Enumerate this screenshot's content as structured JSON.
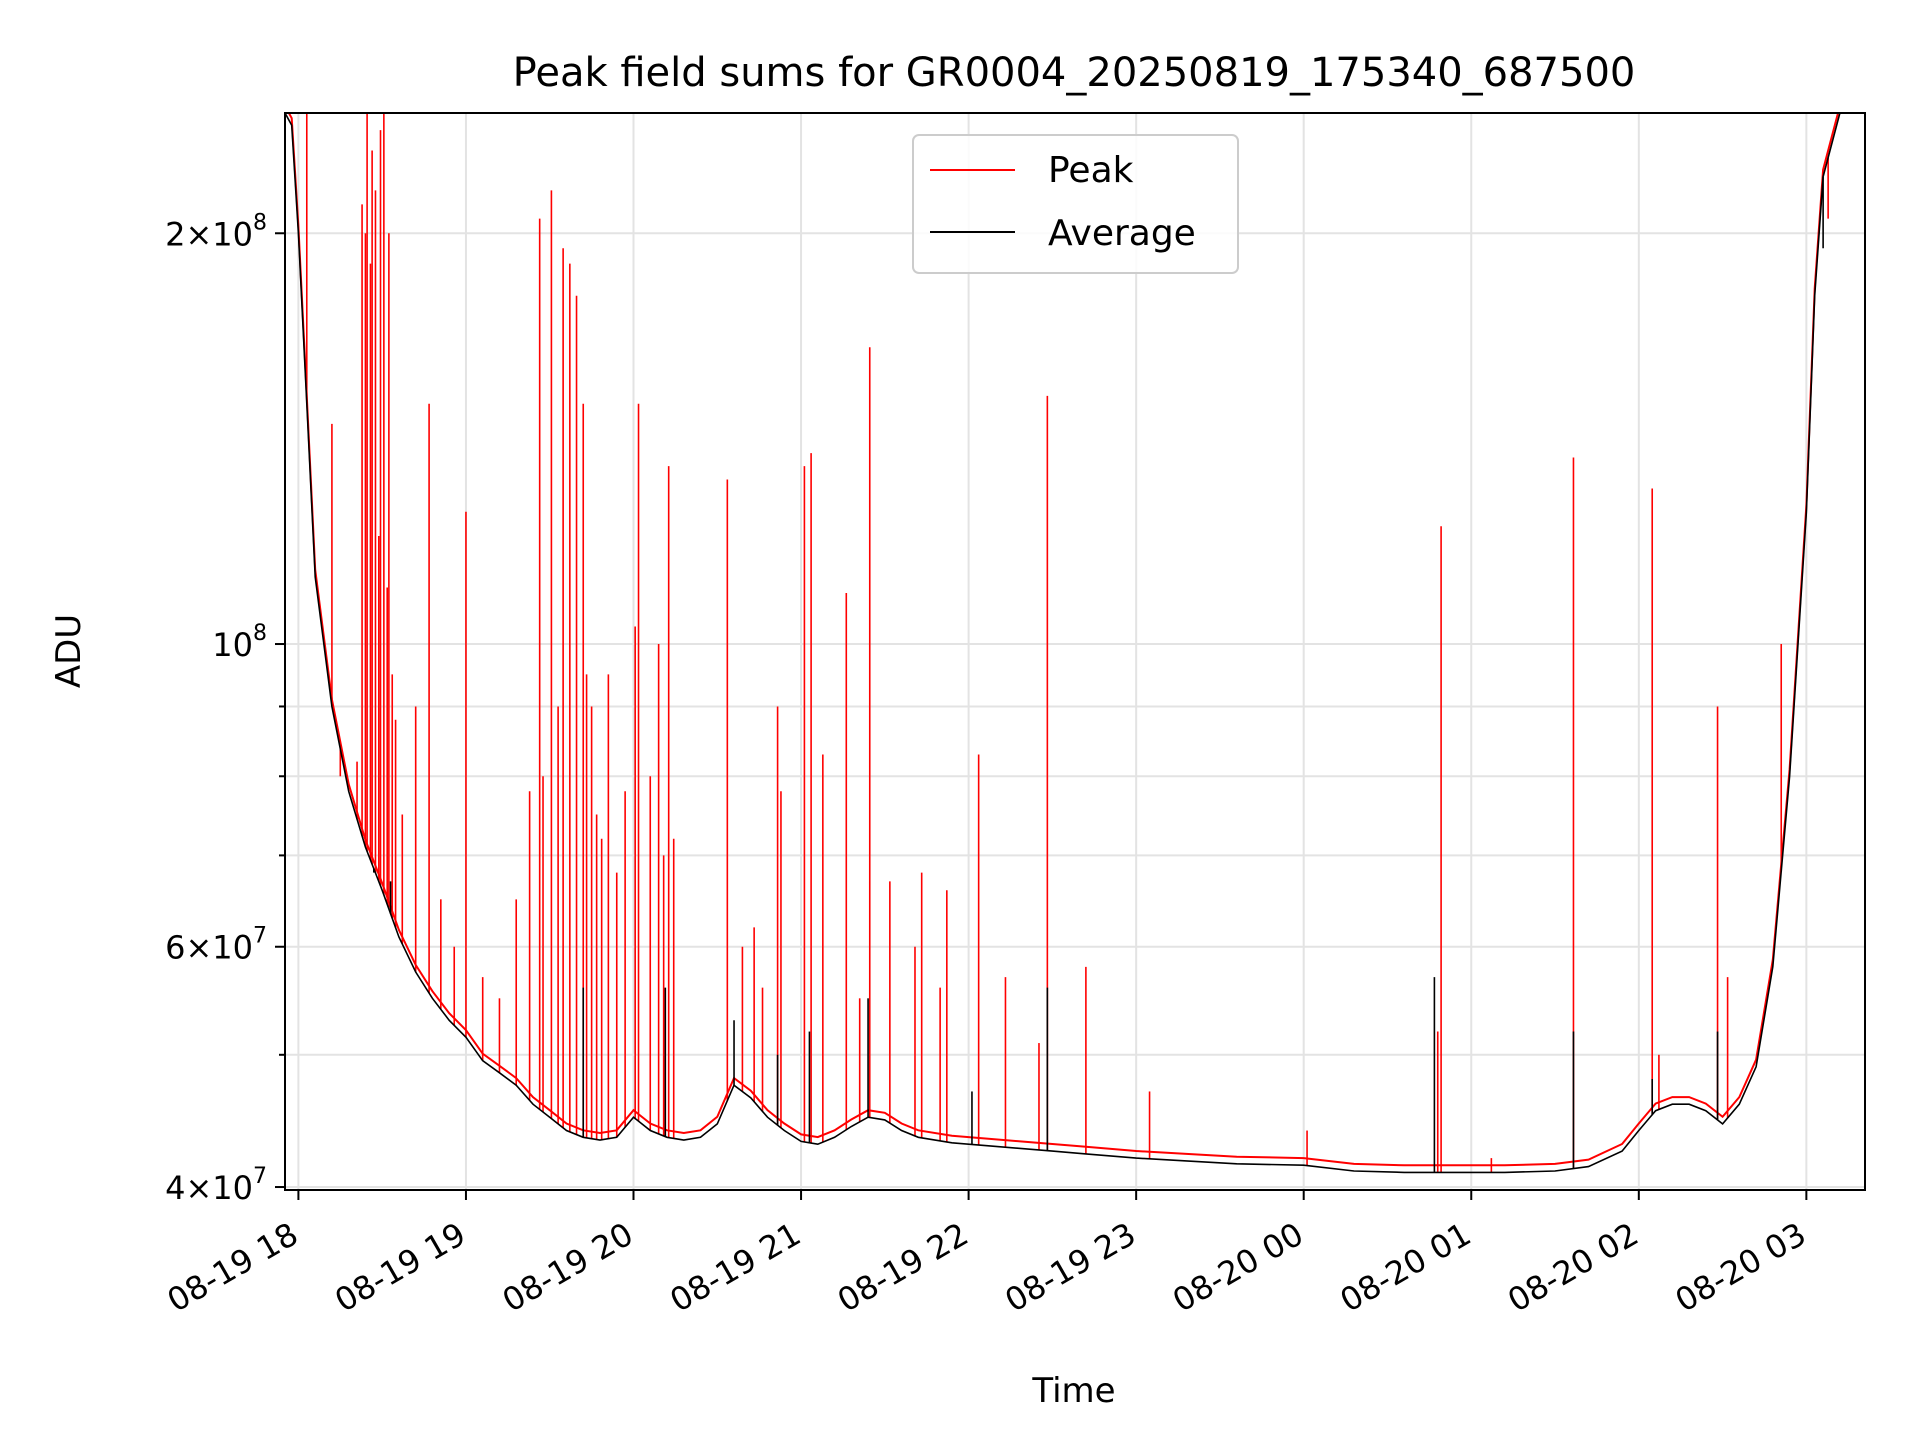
{
  "chart_data": {
    "type": "line",
    "title": "Peak field sums for GR0004_20250819_175340_687500",
    "xlabel": "Time",
    "ylabel": "ADU",
    "yscale": "log",
    "xlim_hours": [
      17.92,
      27.35
    ],
    "ylim": [
      39800000,
      245000000
    ],
    "grid": true,
    "legend_position": "top-center",
    "x_ticks": [
      {
        "hour": 18,
        "label": "08-19 18"
      },
      {
        "hour": 19,
        "label": "08-19 19"
      },
      {
        "hour": 20,
        "label": "08-19 20"
      },
      {
        "hour": 21,
        "label": "08-19 21"
      },
      {
        "hour": 22,
        "label": "08-19 22"
      },
      {
        "hour": 23,
        "label": "08-19 23"
      },
      {
        "hour": 24,
        "label": "08-20 00"
      },
      {
        "hour": 25,
        "label": "08-20 01"
      },
      {
        "hour": 26,
        "label": "08-20 02"
      },
      {
        "hour": 27,
        "label": "08-20 03"
      }
    ],
    "y_ticks_major": [
      {
        "value": 40000000,
        "mantissa": "4",
        "exp": "7"
      },
      {
        "value": 60000000,
        "mantissa": "6",
        "exp": "7"
      },
      {
        "value": 100000000,
        "mantissa": "",
        "exp": "8"
      },
      {
        "value": 200000000,
        "mantissa": "2",
        "exp": "8"
      }
    ],
    "y_ticks_minor": [
      50000000,
      70000000,
      80000000,
      90000000
    ],
    "series": [
      {
        "name": "Average",
        "color": "#000000",
        "points": [
          [
            17.92,
            245000000
          ],
          [
            17.96,
            240000000
          ],
          [
            18.0,
            200000000
          ],
          [
            18.05,
            150000000
          ],
          [
            18.1,
            112000000
          ],
          [
            18.2,
            90000000
          ],
          [
            18.3,
            78000000
          ],
          [
            18.4,
            71000000
          ],
          [
            18.5,
            66000000
          ],
          [
            18.6,
            61000000
          ],
          [
            18.7,
            57500000
          ],
          [
            18.8,
            55000000
          ],
          [
            18.9,
            53000000
          ],
          [
            19.0,
            51500000
          ],
          [
            19.1,
            49500000
          ],
          [
            19.2,
            48500000
          ],
          [
            19.3,
            47500000
          ],
          [
            19.4,
            46000000
          ],
          [
            19.5,
            45000000
          ],
          [
            19.6,
            44000000
          ],
          [
            19.7,
            43500000
          ],
          [
            19.8,
            43300000
          ],
          [
            19.9,
            43500000
          ],
          [
            20.0,
            45000000
          ],
          [
            20.1,
            44000000
          ],
          [
            20.2,
            43500000
          ],
          [
            20.3,
            43300000
          ],
          [
            20.4,
            43500000
          ],
          [
            20.5,
            44500000
          ],
          [
            20.6,
            47500000
          ],
          [
            20.7,
            46500000
          ],
          [
            20.8,
            45000000
          ],
          [
            20.9,
            44000000
          ],
          [
            21.0,
            43200000
          ],
          [
            21.1,
            43000000
          ],
          [
            21.2,
            43500000
          ],
          [
            21.3,
            44300000
          ],
          [
            21.4,
            45000000
          ],
          [
            21.5,
            44800000
          ],
          [
            21.6,
            44000000
          ],
          [
            21.7,
            43500000
          ],
          [
            21.9,
            43100000
          ],
          [
            22.1,
            42900000
          ],
          [
            22.3,
            42700000
          ],
          [
            22.5,
            42500000
          ],
          [
            22.7,
            42300000
          ],
          [
            23.0,
            42000000
          ],
          [
            23.3,
            41800000
          ],
          [
            23.6,
            41600000
          ],
          [
            24.0,
            41500000
          ],
          [
            24.3,
            41100000
          ],
          [
            24.6,
            41000000
          ],
          [
            24.9,
            41000000
          ],
          [
            25.2,
            41000000
          ],
          [
            25.5,
            41100000
          ],
          [
            25.7,
            41400000
          ],
          [
            25.9,
            42500000
          ],
          [
            26.0,
            44000000
          ],
          [
            26.1,
            45500000
          ],
          [
            26.2,
            46000000
          ],
          [
            26.3,
            46000000
          ],
          [
            26.4,
            45500000
          ],
          [
            26.5,
            44500000
          ],
          [
            26.6,
            46000000
          ],
          [
            26.7,
            49000000
          ],
          [
            26.8,
            58000000
          ],
          [
            26.9,
            80000000
          ],
          [
            27.0,
            125000000
          ],
          [
            27.05,
            180000000
          ],
          [
            27.1,
            220000000
          ],
          [
            27.2,
            245000000
          ],
          [
            27.35,
            245000000
          ]
        ],
        "spikes": [
          [
            18.3,
            78000000
          ],
          [
            18.45,
            68000000
          ],
          [
            18.55,
            67000000
          ],
          [
            19.7,
            56000000
          ],
          [
            20.19,
            56000000
          ],
          [
            20.6,
            53000000
          ],
          [
            20.86,
            50000000
          ],
          [
            21.05,
            52000000
          ],
          [
            21.4,
            55000000
          ],
          [
            22.02,
            47000000
          ],
          [
            22.47,
            56000000
          ],
          [
            24.78,
            57000000
          ],
          [
            25.61,
            52000000
          ],
          [
            26.08,
            48000000
          ],
          [
            26.47,
            52000000
          ],
          [
            27.1,
            195000000
          ]
        ]
      },
      {
        "name": "Peak",
        "color": "#ff0000",
        "spikes": [
          [
            18.05,
            245000000
          ],
          [
            18.2,
            145000000
          ],
          [
            18.25,
            80000000
          ],
          [
            18.35,
            82000000
          ],
          [
            18.38,
            210000000
          ],
          [
            18.4,
            200000000
          ],
          [
            18.41,
            245000000
          ],
          [
            18.43,
            190000000
          ],
          [
            18.44,
            230000000
          ],
          [
            18.46,
            215000000
          ],
          [
            18.48,
            120000000
          ],
          [
            18.49,
            238000000
          ],
          [
            18.51,
            245000000
          ],
          [
            18.53,
            110000000
          ],
          [
            18.54,
            200000000
          ],
          [
            18.56,
            95000000
          ],
          [
            18.58,
            88000000
          ],
          [
            18.62,
            75000000
          ],
          [
            18.7,
            90000000
          ],
          [
            18.78,
            150000000
          ],
          [
            18.85,
            65000000
          ],
          [
            18.93,
            60000000
          ],
          [
            19.0,
            125000000
          ],
          [
            19.1,
            57000000
          ],
          [
            19.2,
            55000000
          ],
          [
            19.3,
            65000000
          ],
          [
            19.38,
            78000000
          ],
          [
            19.44,
            205000000
          ],
          [
            19.46,
            80000000
          ],
          [
            19.51,
            215000000
          ],
          [
            19.55,
            90000000
          ],
          [
            19.58,
            195000000
          ],
          [
            19.62,
            190000000
          ],
          [
            19.66,
            180000000
          ],
          [
            19.7,
            150000000
          ],
          [
            19.72,
            95000000
          ],
          [
            19.75,
            90000000
          ],
          [
            19.78,
            75000000
          ],
          [
            19.81,
            72000000
          ],
          [
            19.85,
            95000000
          ],
          [
            19.9,
            68000000
          ],
          [
            19.95,
            78000000
          ],
          [
            20.01,
            103000000
          ],
          [
            20.03,
            150000000
          ],
          [
            20.1,
            80000000
          ],
          [
            20.15,
            100000000
          ],
          [
            20.18,
            70000000
          ],
          [
            20.21,
            135000000
          ],
          [
            20.24,
            72000000
          ],
          [
            20.56,
            132000000
          ],
          [
            20.65,
            60000000
          ],
          [
            20.72,
            62000000
          ],
          [
            20.77,
            56000000
          ],
          [
            20.86,
            90000000
          ],
          [
            20.88,
            78000000
          ],
          [
            21.02,
            135000000
          ],
          [
            21.06,
            138000000
          ],
          [
            21.13,
            83000000
          ],
          [
            21.27,
            109000000
          ],
          [
            21.35,
            55000000
          ],
          [
            21.41,
            165000000
          ],
          [
            21.53,
            67000000
          ],
          [
            21.68,
            60000000
          ],
          [
            21.72,
            68000000
          ],
          [
            21.83,
            56000000
          ],
          [
            21.87,
            66000000
          ],
          [
            22.06,
            83000000
          ],
          [
            22.22,
            57000000
          ],
          [
            22.42,
            51000000
          ],
          [
            22.47,
            152000000
          ],
          [
            22.7,
            58000000
          ],
          [
            23.08,
            47000000
          ],
          [
            24.02,
            44000000
          ],
          [
            24.8,
            52000000
          ],
          [
            24.82,
            122000000
          ],
          [
            25.12,
            42000000
          ],
          [
            25.61,
            137000000
          ],
          [
            26.08,
            130000000
          ],
          [
            26.12,
            50000000
          ],
          [
            26.47,
            90000000
          ],
          [
            26.53,
            57000000
          ],
          [
            26.85,
            100000000
          ],
          [
            27.13,
            205000000
          ]
        ]
      }
    ]
  }
}
